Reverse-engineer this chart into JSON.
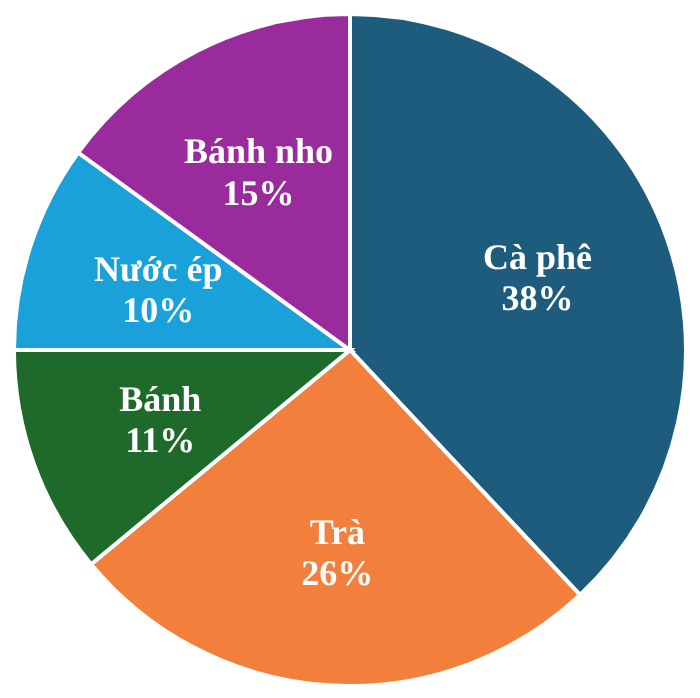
{
  "chart_data": {
    "type": "pie",
    "categories": [
      "Cà phê",
      "Trà",
      "Bánh",
      "Nước ép",
      "Bánh nho"
    ],
    "values": [
      38,
      26,
      11,
      10,
      15
    ],
    "colors": [
      "#1d5c7c",
      "#f27f3c",
      "#1e6a2b",
      "#1ba1da",
      "#9a2b9c"
    ],
    "value_labels": [
      "38%",
      "26%",
      "11%",
      "10%",
      "15%"
    ]
  }
}
